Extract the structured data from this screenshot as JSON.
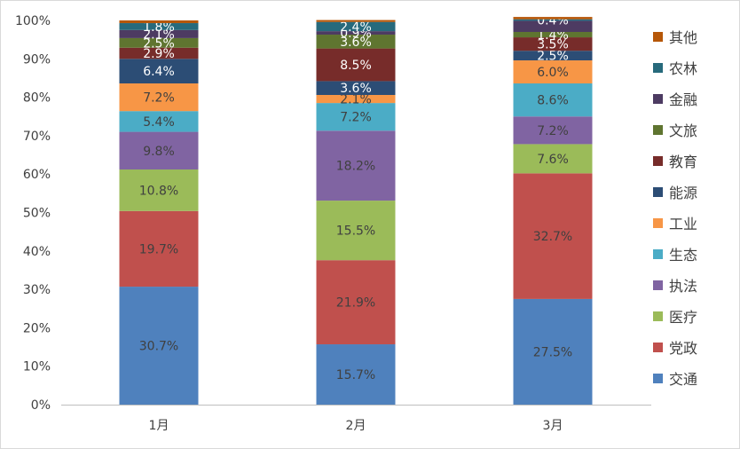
{
  "chart_data": {
    "type": "bar",
    "stacked": true,
    "percent": true,
    "categories": [
      "1月",
      "2月",
      "3月"
    ],
    "ylim": [
      0,
      100
    ],
    "yticks": [
      "0%",
      "10%",
      "20%",
      "30%",
      "40%",
      "50%",
      "60%",
      "70%",
      "80%",
      "90%",
      "100%"
    ],
    "grid": false,
    "legend_position": "right",
    "series": [
      {
        "name": "交通",
        "color": "#4f81bd",
        "values": [
          30.7,
          15.7,
          27.5
        ],
        "labels": [
          "30.7%",
          "15.7%",
          "27.5%"
        ]
      },
      {
        "name": "党政",
        "color": "#c0504d",
        "values": [
          19.7,
          21.9,
          32.7
        ],
        "labels": [
          "19.7%",
          "21.9%",
          "32.7%"
        ]
      },
      {
        "name": "医疗",
        "color": "#9bbb59",
        "values": [
          10.8,
          15.5,
          7.6
        ],
        "labels": [
          "10.8%",
          "15.5%",
          "7.6%"
        ]
      },
      {
        "name": "执法",
        "color": "#8064a2",
        "values": [
          9.8,
          18.2,
          7.2
        ],
        "labels": [
          "9.8%",
          "18.2%",
          "7.2%"
        ]
      },
      {
        "name": "生态",
        "color": "#4bacc6",
        "values": [
          5.4,
          7.2,
          8.6
        ],
        "labels": [
          "5.4%",
          "7.2%",
          "8.6%"
        ]
      },
      {
        "name": "工业",
        "color": "#f79646",
        "values": [
          7.2,
          2.1,
          6.0
        ],
        "labels": [
          "7.2%",
          "2.1%",
          "6.0%"
        ]
      },
      {
        "name": "能源",
        "color": "#2c4d75",
        "values": [
          6.4,
          3.6,
          2.5
        ],
        "labels": [
          "6.4%",
          "3.6%",
          "2.5%"
        ]
      },
      {
        "name": "教育",
        "color": "#772c2a",
        "values": [
          2.9,
          8.5,
          3.5
        ],
        "labels": [
          "2.9%",
          "8.5%",
          "3.5%"
        ]
      },
      {
        "name": "文旅",
        "color": "#5f7530",
        "values": [
          2.5,
          3.6,
          1.4
        ],
        "labels": [
          "2.5%",
          "3.6%",
          "1.4%"
        ]
      },
      {
        "name": "金融",
        "color": "#4d3b62",
        "values": [
          2.1,
          0.9,
          2.9
        ],
        "labels": [
          "2.1%",
          "0.9%",
          ""
        ]
      },
      {
        "name": "农林",
        "color": "#276a7c",
        "values": [
          1.8,
          2.4,
          0.4
        ],
        "labels": [
          "1.8%",
          "2.4%",
          "0.4%"
        ]
      },
      {
        "name": "其他",
        "color": "#b65708",
        "values": [
          0.7,
          0.5,
          0.6
        ],
        "labels": [
          "",
          "",
          ""
        ]
      }
    ]
  }
}
